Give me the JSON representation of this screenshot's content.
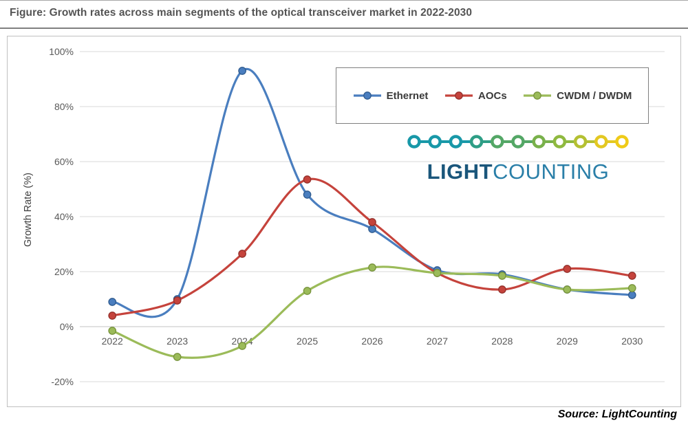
{
  "figure": {
    "title": "Figure: Growth rates across main segments of the optical transceiver market in 2022-2030",
    "source_label": "Source: LightCounting"
  },
  "logo": {
    "name": "lightcounting-logo",
    "text_bold": "LIGHT",
    "text_light": "COUNTING",
    "text_bold_color": "#1a567b",
    "text_light_color": "#2a7fa8",
    "circle_colors": [
      "#1898a8",
      "#1898a8",
      "#1898a8",
      "#2e9e86",
      "#54a766",
      "#54a766",
      "#79b14b",
      "#8fb93f",
      "#b4c032",
      "#e3c822",
      "#efcb19"
    ]
  },
  "chart_data": {
    "type": "line",
    "title": "",
    "xlabel": "",
    "ylabel": "Growth Rate (%)",
    "categories": [
      "2022",
      "2023",
      "2024",
      "2025",
      "2026",
      "2027",
      "2028",
      "2029",
      "2030"
    ],
    "ylim": [
      -20,
      100
    ],
    "ytick_values": [
      100,
      80,
      60,
      40,
      20,
      0,
      -20
    ],
    "ytick_labels": [
      "100%",
      "80%",
      "60%",
      "40%",
      "20%",
      "0%",
      "-20%"
    ],
    "grid": true,
    "grid_color": "#d9d9d9",
    "axis_text_color": "#595959",
    "legend_position": "top-right-inside",
    "series": [
      {
        "name": "Ethernet",
        "color": "#4a7ebf",
        "marker_border": "#2f5b8f",
        "values": [
          9,
          10,
          93,
          48,
          35.5,
          20.5,
          19,
          13.5,
          11.5
        ]
      },
      {
        "name": "AOCs",
        "color": "#c5433c",
        "marker_border": "#94302b",
        "values": [
          4,
          9.5,
          26.5,
          53.5,
          38,
          19.5,
          13.5,
          21,
          18.5
        ]
      },
      {
        "name": "CWDM / DWDM",
        "color": "#9bbb59",
        "marker_border": "#77933c",
        "values": [
          -1.5,
          -11,
          -7,
          13,
          21.5,
          19.5,
          18.5,
          13.5,
          14
        ]
      }
    ]
  }
}
